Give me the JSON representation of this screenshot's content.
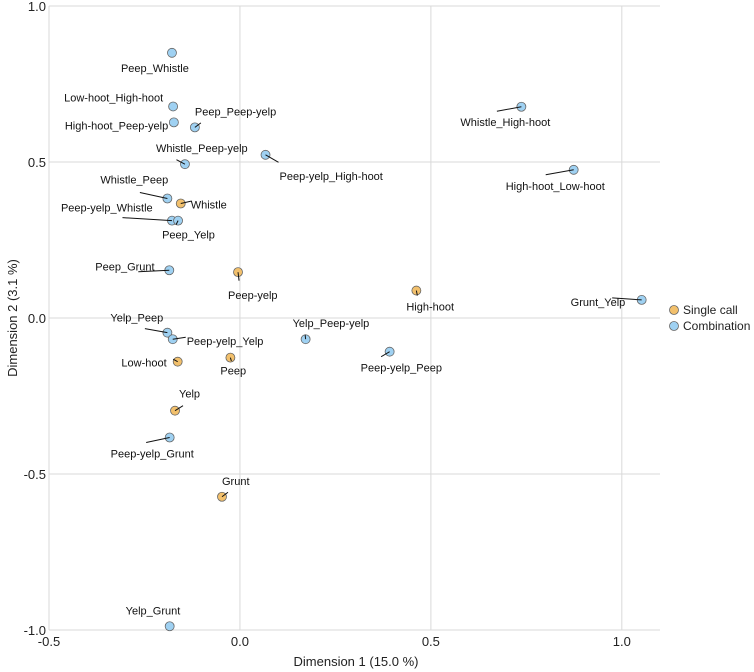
{
  "chart_data": {
    "type": "scatter",
    "xlabel": "Dimension 1 (15.0 %)",
    "ylabel": "Dimension 2 (3.1 %)",
    "xlim": [
      -0.5,
      1.1
    ],
    "ylim": [
      -1.0,
      1.0
    ],
    "xticks": [
      -0.5,
      0.0,
      0.5,
      1.0
    ],
    "xtick_labels": [
      "-0.5",
      "0.0",
      "0.5",
      "1.0"
    ],
    "yticks": [
      -1.0,
      -0.5,
      0.0,
      0.5,
      1.0
    ],
    "ytick_labels": [
      "-1.0",
      "-0.5",
      "0.0",
      "0.5",
      "1.0"
    ],
    "grid": true,
    "legend_position": "right",
    "series": [
      {
        "name": "Single call",
        "color": "#f2c06c",
        "points": [
          {
            "label": "Whistle",
            "x": -0.155,
            "y": 0.367
          },
          {
            "label": "Peep-yelp",
            "x": -0.005,
            "y": 0.147
          },
          {
            "label": "High-hoot",
            "x": 0.462,
            "y": 0.088
          },
          {
            "label": "Low-hoot",
            "x": -0.163,
            "y": -0.14
          },
          {
            "label": "Peep",
            "x": -0.025,
            "y": -0.127
          },
          {
            "label": "Yelp",
            "x": -0.17,
            "y": -0.297
          },
          {
            "label": "Grunt",
            "x": -0.047,
            "y": -0.573
          }
        ]
      },
      {
        "name": "Combination",
        "color": "#9fd1f2",
        "points": [
          {
            "label": "Peep_Whistle",
            "x": -0.178,
            "y": 0.85
          },
          {
            "label": "Low-hoot_High-hoot",
            "x": -0.175,
            "y": 0.678
          },
          {
            "label": "High-hoot_Peep-yelp",
            "x": -0.173,
            "y": 0.627
          },
          {
            "label": "Peep_Peep-yelp",
            "x": -0.118,
            "y": 0.611
          },
          {
            "label": "Whistle_Peep-yelp",
            "x": -0.144,
            "y": 0.493
          },
          {
            "label": "Peep-yelp_High-hoot",
            "x": 0.067,
            "y": 0.523
          },
          {
            "label": "Whistle_High-hoot",
            "x": 0.737,
            "y": 0.677
          },
          {
            "label": "High-hoot_Low-hoot",
            "x": 0.874,
            "y": 0.475
          },
          {
            "label": "Whistle_Peep",
            "x": -0.19,
            "y": 0.383
          },
          {
            "label": "Peep-yelp_Whistle",
            "x": -0.178,
            "y": 0.312
          },
          {
            "label": "Peep_Yelp",
            "x": -0.162,
            "y": 0.312
          },
          {
            "label": "Peep_Grunt",
            "x": -0.185,
            "y": 0.153
          },
          {
            "label": "Grunt_Yelp",
            "x": 1.052,
            "y": 0.058
          },
          {
            "label": "Yelp_Peep",
            "x": -0.19,
            "y": -0.047
          },
          {
            "label": "Peep-yelp_Yelp",
            "x": -0.176,
            "y": -0.068
          },
          {
            "label": "Yelp_Peep-yelp",
            "x": 0.172,
            "y": -0.068
          },
          {
            "label": "Peep-yelp_Peep",
            "x": 0.392,
            "y": -0.108
          },
          {
            "label": "Peep-yelp_Grunt",
            "x": -0.184,
            "y": -0.383
          },
          {
            "label": "Yelp_Grunt",
            "x": -0.184,
            "y": -0.988
          }
        ]
      }
    ]
  }
}
